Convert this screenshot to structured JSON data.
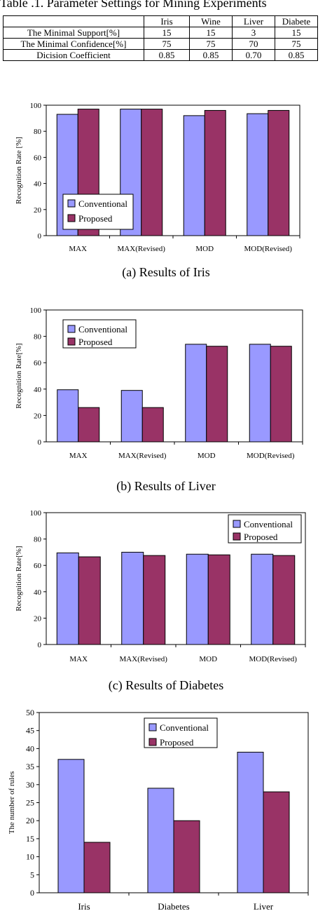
{
  "table": {
    "caption": "Table .1.    Parameter Settings for Mining Experiments",
    "columns": [
      "",
      "Iris",
      "Wine",
      "Liver",
      "Diabete"
    ],
    "rows": [
      {
        "label": "The Minimal Support[%]",
        "values": [
          "15",
          "15",
          "3",
          "15"
        ]
      },
      {
        "label": "The Minimal Confidence[%]",
        "values": [
          "75",
          "75",
          "70",
          "75"
        ]
      },
      {
        "label": "Dicision Coefficient",
        "values": [
          "0.85",
          "0.85",
          "0.70",
          "0.85"
        ]
      }
    ]
  },
  "colors": {
    "conventional": "#9999ff",
    "proposed": "#993366"
  },
  "chart_data": [
    {
      "type": "bar",
      "title": "(a) Results of Iris",
      "ylabel": "Recognition Rate [%]",
      "xlabel": "",
      "categories": [
        "MAX",
        "MAX(Revised)",
        "MOD",
        "MOD(Revised)"
      ],
      "series": [
        {
          "name": "Conventional",
          "values": [
            93,
            97,
            92,
            93.5
          ]
        },
        {
          "name": "Proposed",
          "values": [
            97,
            97,
            96,
            96
          ]
        }
      ],
      "ylim": [
        0,
        100
      ],
      "yticks": [
        "0",
        "20",
        "40",
        "60",
        "80",
        "100"
      ],
      "grid": false,
      "legend": "bottom-left"
    },
    {
      "type": "bar",
      "title": "(b) Results of Liver",
      "ylabel": "Recognition Rate[%]",
      "xlabel": "",
      "categories": [
        "MAX",
        "MAX(Revised)",
        "MOD",
        "MOD(Revised)"
      ],
      "series": [
        {
          "name": "Conventional",
          "values": [
            39.5,
            39,
            74,
            74
          ]
        },
        {
          "name": "Proposed",
          "values": [
            26,
            26,
            72.5,
            72.5
          ]
        }
      ],
      "ylim": [
        0,
        100
      ],
      "yticks": [
        "0",
        "20",
        "40",
        "60",
        "80",
        "100"
      ],
      "grid": false,
      "legend": "top-left"
    },
    {
      "type": "bar",
      "title": "(c) Results of Diabetes",
      "ylabel": "Recognition Rate[%]",
      "xlabel": "",
      "categories": [
        "MAX",
        "MAX(Revised)",
        "MOD",
        "MOD(Revised)"
      ],
      "series": [
        {
          "name": "Conventional",
          "values": [
            69.5,
            70,
            68.5,
            68.5
          ]
        },
        {
          "name": "Proposed",
          "values": [
            66.5,
            67.5,
            68,
            67.5
          ]
        }
      ],
      "ylim": [
        0,
        100
      ],
      "yticks": [
        "0",
        "20",
        "40",
        "60",
        "80",
        "100"
      ],
      "grid": false,
      "legend": "top-right"
    },
    {
      "type": "bar",
      "title": "",
      "ylabel": "The number of rules",
      "xlabel": "",
      "categories": [
        "Iris",
        "Diabetes",
        "Liver"
      ],
      "series": [
        {
          "name": "Conventional",
          "values": [
            37,
            29,
            39
          ]
        },
        {
          "name": "Proposed",
          "values": [
            14,
            20,
            28
          ]
        }
      ],
      "ylim": [
        0,
        50
      ],
      "yticks": [
        "0",
        "5",
        "10",
        "15",
        "20",
        "25",
        "30",
        "35",
        "40",
        "45",
        "50"
      ],
      "grid": false,
      "legend": "top-center"
    }
  ]
}
